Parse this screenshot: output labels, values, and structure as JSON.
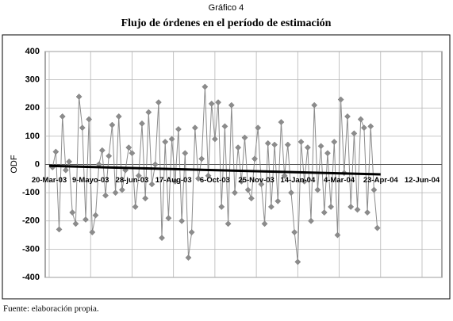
{
  "chart_data": {
    "type": "line",
    "caption": "Gráfico 4",
    "title": "Flujo de órdenes en el período de estimación",
    "y_label": "ODF",
    "source": "Fuente: elaboración propia.",
    "ylim": [
      -400,
      400
    ],
    "yticks": [
      -400,
      -300,
      -200,
      -100,
      0,
      100,
      200,
      300,
      400
    ],
    "xlim": [
      "2003-03-20",
      "2004-06-12"
    ],
    "xticks": [
      {
        "value": "2003-03-20",
        "label": "20-Mar-03"
      },
      {
        "value": "2003-05-09",
        "label": "9-Mayo-03"
      },
      {
        "value": "2003-06-28",
        "label": "28-jun-03"
      },
      {
        "value": "2003-08-17",
        "label": "17-Aug-03"
      },
      {
        "value": "2003-10-06",
        "label": "6-Oct-03"
      },
      {
        "value": "2003-11-25",
        "label": "25-Nov-03"
      },
      {
        "value": "2004-01-14",
        "label": "14-Jan-04"
      },
      {
        "value": "2004-03-04",
        "label": "4-Mar-04"
      },
      {
        "value": "2004-04-23",
        "label": "23-Apr-04"
      },
      {
        "value": "2004-06-12",
        "label": "12-Jun-04"
      }
    ],
    "grid": true,
    "series": [
      {
        "color": "#8c8c8c",
        "x": [
          "2003-03-24",
          "2003-03-28",
          "2003-04-01",
          "2003-04-05",
          "2003-04-09",
          "2003-04-13",
          "2003-04-17",
          "2003-04-21",
          "2003-04-25",
          "2003-04-29",
          "2003-05-03",
          "2003-05-07",
          "2003-05-11",
          "2003-05-15",
          "2003-05-19",
          "2003-05-23",
          "2003-05-27",
          "2003-05-31",
          "2003-06-04",
          "2003-06-08",
          "2003-06-12",
          "2003-06-16",
          "2003-06-20",
          "2003-06-24",
          "2003-06-28",
          "2003-07-02",
          "2003-07-06",
          "2003-07-10",
          "2003-07-14",
          "2003-07-18",
          "2003-07-22",
          "2003-07-26",
          "2003-07-30",
          "2003-08-03",
          "2003-08-07",
          "2003-08-11",
          "2003-08-15",
          "2003-08-19",
          "2003-08-23",
          "2003-08-27",
          "2003-08-31",
          "2003-09-04",
          "2003-09-08",
          "2003-09-12",
          "2003-09-16",
          "2003-09-20",
          "2003-09-24",
          "2003-09-28",
          "2003-10-02",
          "2003-10-06",
          "2003-10-10",
          "2003-10-14",
          "2003-10-18",
          "2003-10-22",
          "2003-10-26",
          "2003-10-30",
          "2003-11-03",
          "2003-11-07",
          "2003-11-11",
          "2003-11-15",
          "2003-11-19",
          "2003-11-23",
          "2003-11-27",
          "2003-12-01",
          "2003-12-05",
          "2003-12-09",
          "2003-12-13",
          "2003-12-17",
          "2003-12-21",
          "2003-12-25",
          "2003-12-29",
          "2004-01-02",
          "2004-01-06",
          "2004-01-10",
          "2004-01-14",
          "2004-01-18",
          "2004-01-22",
          "2004-01-26",
          "2004-01-30",
          "2004-02-03",
          "2004-02-07",
          "2004-02-11",
          "2004-02-15",
          "2004-02-19",
          "2004-02-23",
          "2004-02-27",
          "2004-03-02",
          "2004-03-06",
          "2004-03-10",
          "2004-03-14",
          "2004-03-18",
          "2004-03-22",
          "2004-03-26",
          "2004-03-30",
          "2004-04-03",
          "2004-04-07",
          "2004-04-11",
          "2004-04-15",
          "2004-04-19"
        ],
        "values": [
          -10,
          45,
          -230,
          170,
          -20,
          10,
          -170,
          -210,
          240,
          130,
          -195,
          160,
          -240,
          -180,
          0,
          50,
          -110,
          30,
          140,
          -100,
          170,
          -90,
          -20,
          60,
          40,
          -150,
          -40,
          145,
          -120,
          185,
          -70,
          0,
          220,
          -260,
          80,
          -190,
          90,
          -60,
          125,
          -200,
          40,
          -330,
          -240,
          130,
          -50,
          20,
          275,
          -40,
          215,
          90,
          220,
          -150,
          135,
          -210,
          210,
          -100,
          60,
          -60,
          95,
          -90,
          -120,
          20,
          130,
          -70,
          -210,
          75,
          -150,
          70,
          -130,
          150,
          -40,
          70,
          -100,
          -240,
          -345,
          80,
          -60,
          60,
          -200,
          210,
          -90,
          65,
          -170,
          40,
          -150,
          80,
          -250,
          230,
          -30,
          170,
          -150,
          110,
          -160,
          160,
          130,
          -170,
          135,
          -90,
          -225
        ]
      }
    ],
    "trend": {
      "color": "#000000",
      "x": [
        "2003-03-20",
        "2004-04-23"
      ],
      "values": [
        -5,
        -35
      ]
    }
  }
}
